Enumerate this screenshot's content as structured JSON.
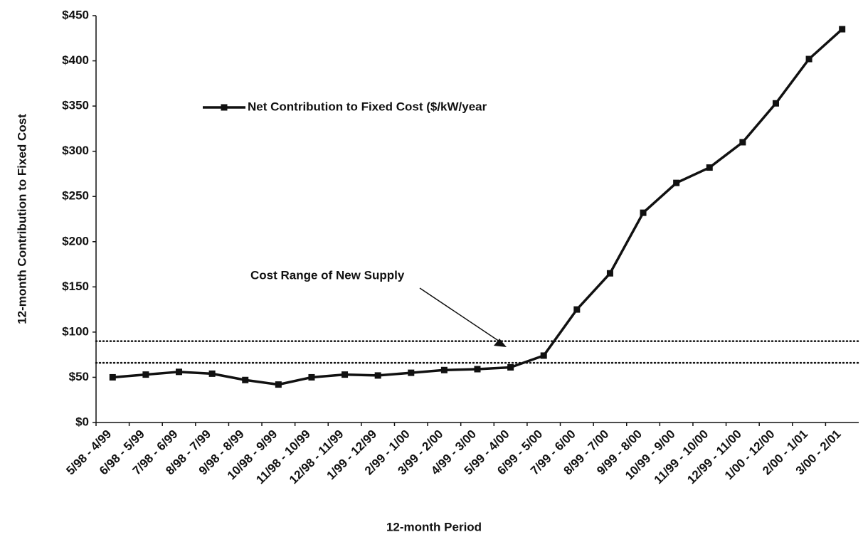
{
  "chart_data": {
    "type": "line",
    "x_label": "12-month Period",
    "y_label": "12-month Contribution to Fixed Cost",
    "annotation": "Cost Range of New Supply",
    "legend": "upper left",
    "categories": [
      "5/98 - 4/99",
      "6/98 - 5/99",
      "7/98 - 6/99",
      "8/98 - 7/99",
      "9/98 - 8/99",
      "10/98 - 9/99",
      "11/98 - 10/99",
      "12/98 - 11/99",
      "1/99 - 12/99",
      "2/99 - 1/00",
      "3/99 - 2/00",
      "4/99 - 3/00",
      "5/99 - 4/00",
      "6/99 - 5/00",
      "7/99 - 6/00",
      "8/99 - 7/00",
      "9/99 - 8/00",
      "10/99 - 9/00",
      "11/99 - 10/00",
      "12/99 - 11/00",
      "1/00 - 12/00",
      "2/00 - 1/01",
      "3/00 - 2/01"
    ],
    "series": [
      {
        "name": "Net Contribution to Fixed Cost ($/kW/year",
        "color": "#111111",
        "values": [
          50,
          53,
          56,
          54,
          47,
          42,
          50,
          53,
          52,
          55,
          58,
          59,
          61,
          74,
          125,
          165,
          232,
          265,
          282,
          310,
          353,
          402,
          435
        ]
      }
    ],
    "reference_lines": [
      90,
      66
    ],
    "ylim": [
      0,
      450
    ],
    "yticks": [
      {
        "value": 0,
        "label": "$0"
      },
      {
        "value": 50,
        "label": "$50"
      },
      {
        "value": 100,
        "label": "$100"
      },
      {
        "value": 150,
        "label": "$150"
      },
      {
        "value": 200,
        "label": "$200"
      },
      {
        "value": 250,
        "label": "$250"
      },
      {
        "value": 300,
        "label": "$300"
      },
      {
        "value": 350,
        "label": "$350"
      },
      {
        "value": 400,
        "label": "$400"
      },
      {
        "value": 450,
        "label": "$450"
      }
    ],
    "grid": false
  }
}
